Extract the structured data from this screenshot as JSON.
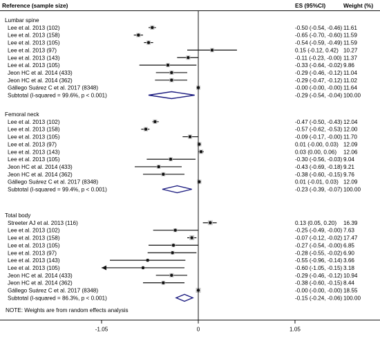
{
  "headers": {
    "reference": "Reference (sample size)",
    "es": "ES (95%CI)",
    "weight": "Weight (%)"
  },
  "note": "NOTE: Weights are from random effects analysis",
  "colors": {
    "marker": "#111111",
    "diamond": "#1c1c80",
    "ci_line": "#111111"
  },
  "chart_data": {
    "type": "forest",
    "xlim": [
      -1.3,
      1.3
    ],
    "xticks": [
      -1.05,
      0,
      1.05
    ],
    "xtick_labels": [
      "-1.05",
      "0",
      "1.05"
    ],
    "groups": [
      {
        "title": "Lumbar spine",
        "studies": [
          {
            "label": "Lee et al. 2013 (102)",
            "es": -0.5,
            "lo": -0.54,
            "hi": -0.46,
            "text": "-0.50 (-0.54, -0.46)",
            "weight": "11.61"
          },
          {
            "label": "Lee et al. 2013 (158)",
            "es": -0.65,
            "lo": -0.7,
            "hi": -0.6,
            "text": "-0.65 (-0.70, -0.60)",
            "weight": "11.59"
          },
          {
            "label": "Lee et al. 2013 (105)",
            "es": -0.54,
            "lo": -0.59,
            "hi": -0.49,
            "text": "-0.54 (-0.59, -0.49)",
            "weight": "11.59"
          },
          {
            "label": "Lee et al. 2013 (97)",
            "es": 0.15,
            "lo": -0.12,
            "hi": 0.42,
            "text": "0.15 (-0.12, 0.42)",
            "weight": "10.27"
          },
          {
            "label": "Lee et al. 2013 (143)",
            "es": -0.11,
            "lo": -0.23,
            "hi": 0.0,
            "text": "-0.11 (-0.23, -0.00)",
            "weight": "11.37"
          },
          {
            "label": "Lee et al. 2013 (105)",
            "es": -0.33,
            "lo": -0.64,
            "hi": -0.02,
            "text": "-0.33 (-0.64, -0.02)",
            "weight": "9.86"
          },
          {
            "label": "Jeon HC et al. 2014 (433)",
            "es": -0.29,
            "lo": -0.46,
            "hi": -0.12,
            "text": "-0.29 (-0.46, -0.12)",
            "weight": "11.04"
          },
          {
            "label": "Jeon HC et al. 2014 (362)",
            "es": -0.29,
            "lo": -0.47,
            "hi": -0.12,
            "text": "-0.29 (-0.47, -0.12)",
            "weight": "11.02"
          },
          {
            "label": "Gállego Suárez C et al. 2017 (8348)",
            "es": -0.0,
            "lo": -0.0,
            "hi": -0.0,
            "text": "-0.00 (-0.00, -0.00)",
            "weight": "11.64"
          }
        ],
        "subtotal": {
          "label": "Subtotal  (I-squared = 99.6%, p < 0.001)",
          "es": -0.29,
          "lo": -0.54,
          "hi": -0.04,
          "text": "-0.29 (-0.54, -0.04)",
          "weight": "100.00"
        }
      },
      {
        "title": "Femoral neck",
        "studies": [
          {
            "label": "Lee et al. 2013 (102)",
            "es": -0.47,
            "lo": -0.5,
            "hi": -0.43,
            "text": "-0.47 (-0.50, -0.43)",
            "weight": "12.04"
          },
          {
            "label": "Lee et al. 2013 (158)",
            "es": -0.57,
            "lo": -0.62,
            "hi": -0.53,
            "text": "-0.57 (-0.62, -0.53)",
            "weight": "12.00"
          },
          {
            "label": "Lee et al. 2013 (105)",
            "es": -0.09,
            "lo": -0.17,
            "hi": 0.0,
            "text": "-0.09 (-0.17, -0.00)",
            "weight": "11.70"
          },
          {
            "label": "Lee et al. 2013 (97)",
            "es": 0.01,
            "lo": 0.0,
            "hi": 0.03,
            "text": "0.01 (-0.00, 0.03)",
            "weight": "12.09"
          },
          {
            "label": "Lee et al. 2013 (143)",
            "es": 0.03,
            "lo": 0.0,
            "hi": 0.06,
            "text": "0.03 (0.00, 0.06)",
            "weight": "12.06"
          },
          {
            "label": "Lee et al. 2013 (105)",
            "es": -0.3,
            "lo": -0.56,
            "hi": -0.03,
            "text": "-0.30 (-0.56, -0.03)",
            "weight": "9.04"
          },
          {
            "label": "Jeon HC et al. 2014 (433)",
            "es": -0.43,
            "lo": -0.69,
            "hi": -0.18,
            "text": "-0.43 (-0.69, -0.18)",
            "weight": "9.21"
          },
          {
            "label": "Jeon HC et al. 2014 (362)",
            "es": -0.38,
            "lo": -0.6,
            "hi": -0.15,
            "text": "-0.38 (-0.60, -0.15)",
            "weight": "9.76"
          },
          {
            "label": "Gállego Suárez C et al. 2017 (8348)",
            "es": 0.01,
            "lo": -0.01,
            "hi": 0.03,
            "text": "0.01 (-0.01, 0.03)",
            "weight": "12.09"
          }
        ],
        "subtotal": {
          "label": "Subtotal  (I-squared = 99.4%, p < 0.001)",
          "es": -0.23,
          "lo": -0.39,
          "hi": -0.07,
          "text": "-0.23 (-0.39, -0.07)",
          "weight": "100.00"
        }
      },
      {
        "title": "Total body",
        "studies": [
          {
            "label": "Streeter AJ et al. 2013 (116)",
            "es": 0.13,
            "lo": 0.05,
            "hi": 0.2,
            "text": "0.13 (0.05, 0.20)",
            "weight": "16.39"
          },
          {
            "label": "Lee et al. 2013 (102)",
            "es": -0.25,
            "lo": -0.49,
            "hi": 0.0,
            "text": "-0.25 (-0.49, -0.00)",
            "weight": "7.63"
          },
          {
            "label": "Lee et al. 2013 (158)",
            "es": -0.07,
            "lo": -0.12,
            "hi": -0.02,
            "text": "-0.07 (-0.12, -0.02)",
            "weight": "17.47"
          },
          {
            "label": "Lee et al. 2013 (105)",
            "es": -0.27,
            "lo": -0.54,
            "hi": 0.0,
            "text": "-0.27 (-0.54, -0.00)",
            "weight": "6.85"
          },
          {
            "label": "Lee et al. 2013 (97)",
            "es": -0.28,
            "lo": -0.55,
            "hi": -0.02,
            "text": "-0.28 (-0.55, -0.02)",
            "weight": "6.90"
          },
          {
            "label": "Lee et al. 2013 (143)",
            "es": -0.55,
            "lo": -0.96,
            "hi": -0.14,
            "text": "-0.55 (-0.96, -0.14)",
            "weight": "3.66"
          },
          {
            "label": "Lee et al. 2013 (105)",
            "es": -0.6,
            "lo": -1.05,
            "hi": -0.15,
            "text": "-0.60 (-1.05, -0.15)",
            "weight": "3.18",
            "arrow_left": true
          },
          {
            "label": "Jeon HC et al. 2014 (433)",
            "es": -0.29,
            "lo": -0.46,
            "hi": -0.12,
            "text": "-0.29 (-0.46, -0.12)",
            "weight": "10.94"
          },
          {
            "label": "Jeon HC et al. 2014 (362)",
            "es": -0.38,
            "lo": -0.6,
            "hi": -0.15,
            "text": "-0.38 (-0.60, -0.15)",
            "weight": "8.44"
          },
          {
            "label": "Gállego Suárez C et al. 2017 (8348)",
            "es": -0.0,
            "lo": -0.0,
            "hi": -0.0,
            "text": "-0.00 (-0.00, -0.00)",
            "weight": "18.55"
          }
        ],
        "subtotal": {
          "label": "Subtotal  (I-squared = 86.3%, p < 0.001)",
          "es": -0.15,
          "lo": -0.24,
          "hi": -0.06,
          "text": "-0.15 (-0.24, -0.06)",
          "weight": "100.00"
        }
      }
    ]
  }
}
